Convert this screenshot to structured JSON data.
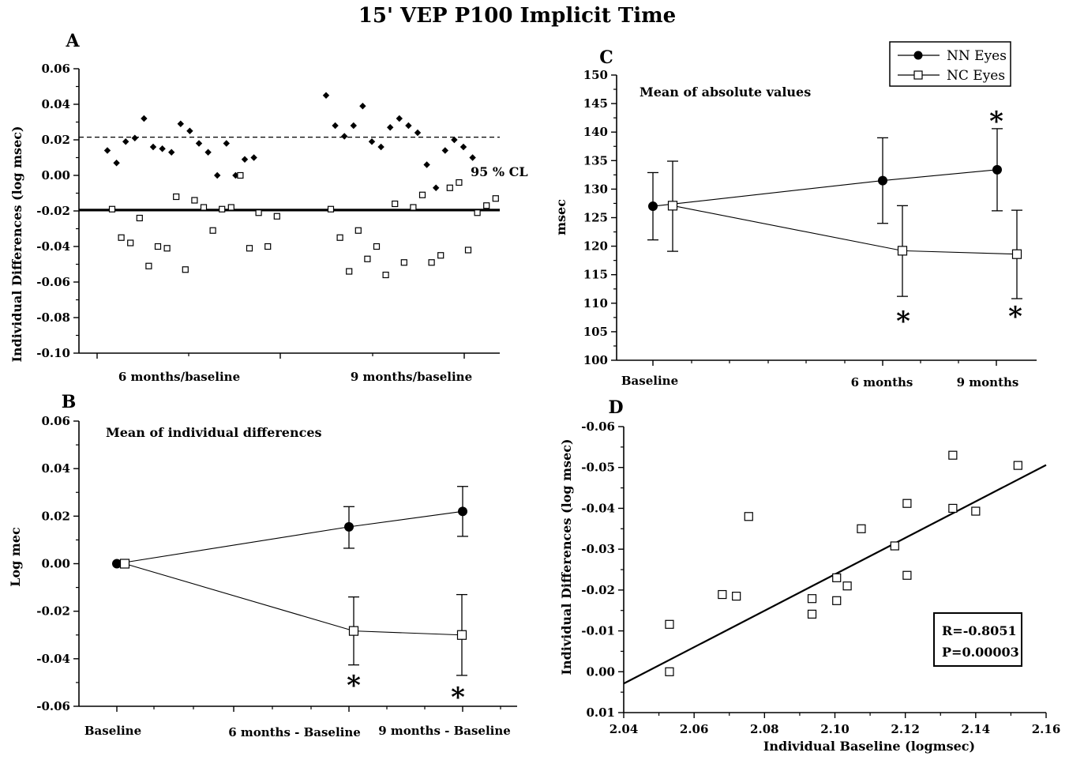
{
  "title": "15' VEP P100 Implicit Time",
  "chart_data": [
    {
      "panel": "A",
      "type": "scatter",
      "ylabel": "Individual Differences (log msec)",
      "ylim": [
        -0.1,
        0.06
      ],
      "yticks": [
        "0.06",
        "0.04",
        "0.02",
        "0.00",
        "-0.02",
        "-0.04",
        "-0.06",
        "-0.08",
        "-0.10"
      ],
      "categories": [
        "6 months/baseline",
        "9 months/baseline"
      ],
      "annotation": "95 % CL",
      "cl_upper": 0.0215,
      "cl_lower": -0.0195,
      "series": [
        {
          "group": "6 months/baseline",
          "marker": "filled-diamond",
          "values": [
            0.014,
            0.007,
            0.019,
            0.021,
            0.032,
            0.016,
            0.015,
            0.013,
            0.029,
            0.025,
            0.018,
            0.013,
            0.0,
            0.018,
            0.0,
            0.009,
            0.01
          ]
        },
        {
          "group": "6 months/baseline",
          "marker": "open-square",
          "values": [
            -0.019,
            -0.035,
            -0.038,
            -0.024,
            -0.051,
            -0.04,
            -0.041,
            -0.012,
            -0.053,
            -0.014,
            -0.018,
            -0.031,
            -0.019,
            -0.018,
            0.0,
            -0.041,
            -0.021,
            -0.04,
            -0.023
          ]
        },
        {
          "group": "9 months/baseline",
          "marker": "filled-diamond",
          "values": [
            0.045,
            0.028,
            0.022,
            0.028,
            0.039,
            0.019,
            0.016,
            0.027,
            0.032,
            0.028,
            0.024,
            0.006,
            -0.007,
            0.014,
            0.02,
            0.016,
            0.01
          ]
        },
        {
          "group": "9 months/baseline",
          "marker": "open-square",
          "values": [
            -0.019,
            -0.035,
            -0.054,
            -0.031,
            -0.047,
            -0.04,
            -0.056,
            -0.016,
            -0.049,
            -0.018,
            -0.011,
            -0.049,
            -0.045,
            -0.007,
            -0.004,
            -0.042,
            -0.021,
            -0.017,
            -0.013
          ]
        }
      ]
    },
    {
      "panel": "B",
      "type": "line",
      "subtitle": "Mean of individual differences",
      "ylabel": "Log mec",
      "ylim": [
        -0.06,
        0.06
      ],
      "yticks": [
        "0.06",
        "0.04",
        "0.02",
        "0.00",
        "-0.02",
        "-0.04",
        "-0.06"
      ],
      "categories": [
        "Baseline",
        "6 months - Baseline",
        "9 months - Baseline"
      ],
      "series": [
        {
          "name": "NN Eyes",
          "marker": "filled-circle",
          "values": [
            0.0,
            0.0155,
            0.022
          ],
          "err_low": [
            0,
            0.009,
            0.0105
          ],
          "err_high": [
            0,
            0.0085,
            0.0105
          ]
        },
        {
          "name": "NC Eyes",
          "marker": "open-square",
          "values": [
            0.0,
            -0.0283,
            -0.03
          ],
          "err_low": [
            0,
            0.0143,
            0.017
          ],
          "err_high": [
            0,
            0.0143,
            0.017
          ]
        }
      ],
      "significance": [
        "*",
        "*"
      ]
    },
    {
      "panel": "C",
      "type": "line",
      "subtitle": "Mean of absolute values",
      "ylabel": "msec",
      "ylim": [
        100,
        150
      ],
      "yticks": [
        "150",
        "145",
        "140",
        "135",
        "130",
        "125",
        "120",
        "115",
        "110",
        "105",
        "100"
      ],
      "categories": [
        "Baseline",
        "6 months",
        "9 months"
      ],
      "series": [
        {
          "name": "NN Eyes",
          "marker": "filled-circle",
          "values": [
            127.0,
            131.5,
            133.4
          ],
          "err_low": [
            5.9,
            7.5,
            7.2
          ],
          "err_high": [
            5.9,
            7.5,
            7.2
          ]
        },
        {
          "name": "NC Eyes",
          "marker": "open-square",
          "values": [
            127.1,
            119.2,
            118.6
          ],
          "err_low": [
            8.0,
            8.0,
            7.8
          ],
          "err_high": [
            7.8,
            7.9,
            7.7
          ]
        }
      ],
      "significance": [
        "*",
        "*",
        "*"
      ]
    },
    {
      "panel": "D",
      "type": "scatter",
      "xlabel": "Individual Baseline (logmsec)",
      "ylabel": "Individual Differences (log msec)",
      "xlim": [
        2.04,
        2.16
      ],
      "ylim_top_to_bottom": [
        -0.06,
        0.01
      ],
      "xticks": [
        "2.04",
        "2.06",
        "2.08",
        "2.10",
        "2.12",
        "2.14",
        "2.16"
      ],
      "yticks": [
        "-0.06",
        "-0.05",
        "-0.04",
        "-0.03",
        "-0.02",
        "-0.01",
        "0.00",
        "0.01"
      ],
      "stats": [
        "R=-0.8051",
        "P=0.00003"
      ],
      "points": [
        [
          2.053,
          -0.0116
        ],
        [
          2.053,
          0.0
        ],
        [
          2.068,
          -0.0189
        ],
        [
          2.072,
          -0.0185
        ],
        [
          2.0755,
          -0.038
        ],
        [
          2.0935,
          -0.0179
        ],
        [
          2.0935,
          -0.0141
        ],
        [
          2.1005,
          -0.023
        ],
        [
          2.1005,
          -0.0174
        ],
        [
          2.1035,
          -0.021
        ],
        [
          2.1075,
          -0.035
        ],
        [
          2.117,
          -0.0308
        ],
        [
          2.1205,
          -0.0412
        ],
        [
          2.1205,
          -0.0236
        ],
        [
          2.1335,
          -0.053
        ],
        [
          2.1335,
          -0.04
        ],
        [
          2.14,
          -0.0393
        ],
        [
          2.152,
          -0.0505
        ]
      ],
      "fit_line": [
        [
          2.04,
          0.0029
        ],
        [
          2.16,
          -0.0506
        ]
      ]
    }
  ]
}
